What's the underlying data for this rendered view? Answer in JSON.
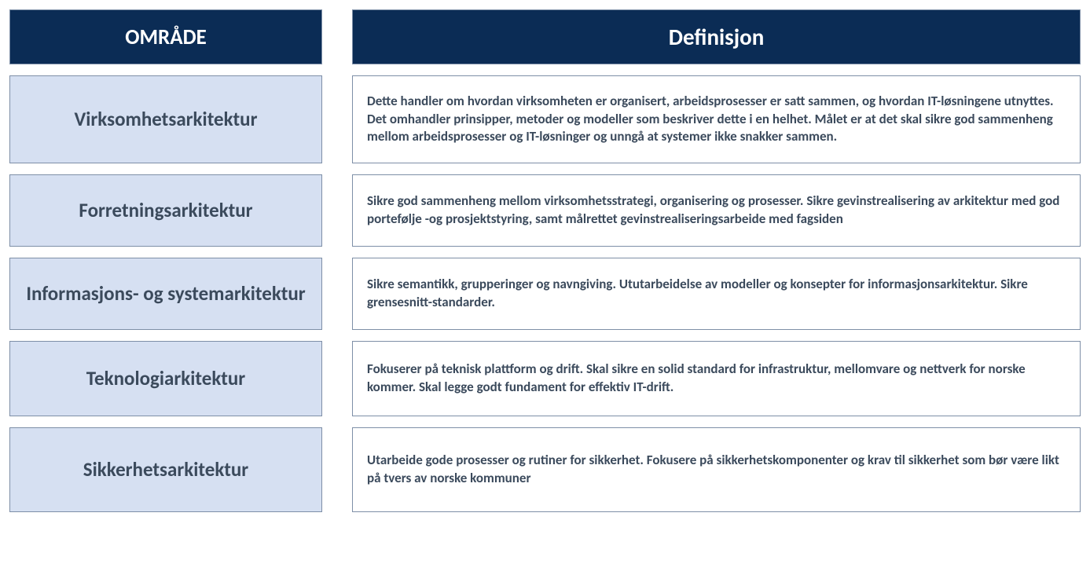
{
  "colors": {
    "header_bg": "#0b2c55",
    "header_text": "#ffffff",
    "area_bg": "#d6e0f2",
    "area_text": "#3b4a5c",
    "def_bg": "#ffffff",
    "def_text": "#3b4a5c",
    "border": "#7e8fa7"
  },
  "headers": {
    "area": "OMRÅDE",
    "definition": "Definisjon"
  },
  "rows": [
    {
      "area": "Virksomhetsarkitektur",
      "definition": "Dette handler om hvordan virksomheten er organisert, arbeidsprosesser er satt sammen, og hvordan IT-løsningene utnyttes. Det omhandler prinsipper, metoder og modeller som beskriver dette i en helhet. Målet er at det skal sikre god sammenheng mellom arbeidsprosesser og IT-løsninger og unngå at systemer ikke snakker sammen."
    },
    {
      "area": "Forretningsarkitektur",
      "definition": "Sikre god sammenheng mellom virksomhetsstrategi, organisering og prosesser. Sikre gevinstrealisering av arkitektur med god portefølje -og prosjektstyring, samt målrettet gevinstrealiseringsarbeide med fagsiden"
    },
    {
      "area": "Informasjons- og systemarkitektur",
      "definition": "Sikre semantikk, grupperinger og navngiving. Ututarbeidelse av modeller og konsepter for informasjonsarkitektur. Sikre grensesnitt-standarder."
    },
    {
      "area": "Teknologiarkitektur",
      "definition": "Fokuserer på teknisk plattform og drift. Skal sikre en solid  standard  for infrastruktur, mellomvare og nettverk for norske kommer. Skal legge godt fundament for effektiv IT-drift."
    },
    {
      "area": "Sikkerhetsarkitektur",
      "definition": "Utarbeide gode prosesser og rutiner for sikkerhet. Fokusere på sikkerhetskomponenter og krav til sikkerhet som bør være likt på tvers av norske kommuner"
    }
  ],
  "layout": {
    "row_min_heights": [
      112,
      92,
      92,
      96,
      108
    ]
  }
}
